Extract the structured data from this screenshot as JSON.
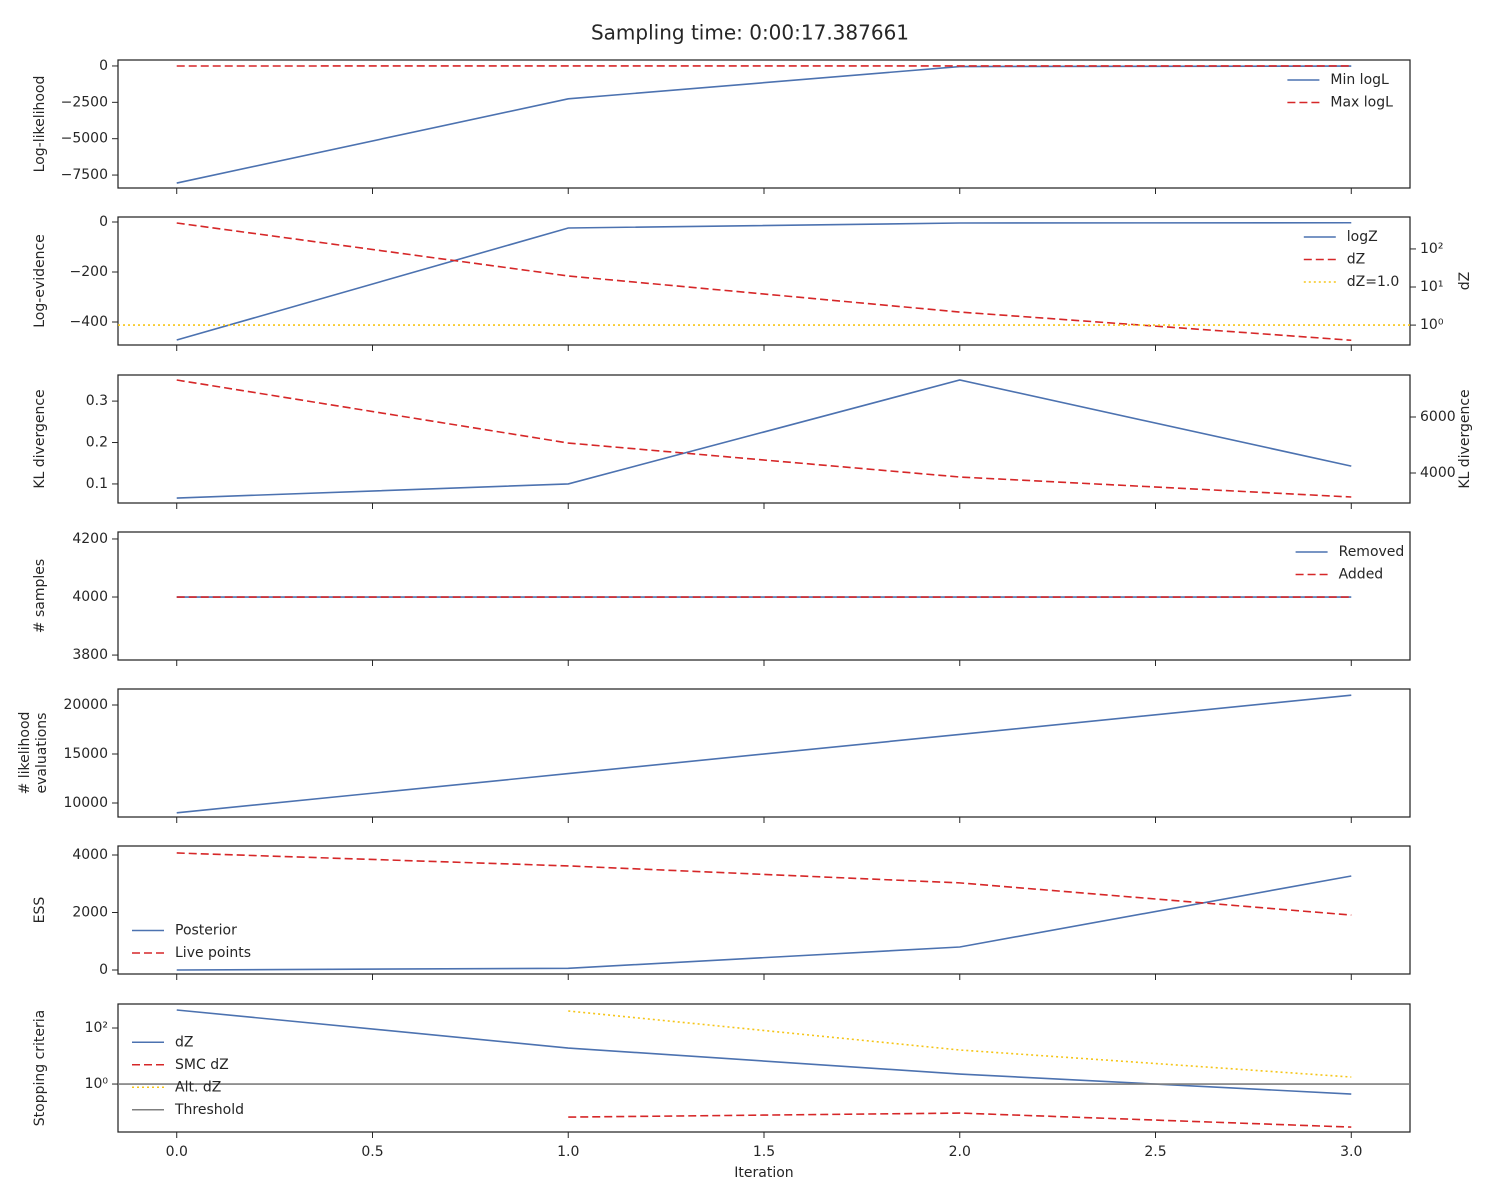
{
  "title": "Sampling time: 0:00:17.387661",
  "chart_data": [
    {
      "type": "line",
      "ylabel": "Log-likelihood",
      "x": [
        0,
        1,
        2,
        3
      ],
      "xlim": [
        -0.15,
        3.15
      ],
      "xticks": [
        0,
        0.5,
        1,
        1.5,
        2,
        2.5,
        3
      ],
      "ylim": [
        -8390,
        410
      ],
      "yticks": [
        0,
        {
          "value": -2500,
          "label": "−2500"
        },
        {
          "value": -5000,
          "label": "−5000"
        },
        {
          "value": -7500,
          "label": "−7500"
        }
      ],
      "legend": "upper right",
      "series": [
        {
          "name": "Min logL",
          "color": "#4c72b0",
          "dash": "solid",
          "values": [
            -8050,
            -2260,
            -40,
            -5
          ]
        },
        {
          "name": "Max logL",
          "color": "#d62728",
          "dash": "dashed",
          "values": [
            -2,
            -1,
            -0.5,
            -0.1
          ]
        }
      ]
    },
    {
      "type": "line",
      "ylabel": "Log-evidence",
      "x": [
        0,
        1,
        2,
        3
      ],
      "xlim": [
        -0.15,
        3.15
      ],
      "xticks": [
        0,
        0.5,
        1,
        1.5,
        2,
        2.5,
        3
      ],
      "ylim": [
        -492,
        20
      ],
      "yticks": [
        0,
        {
          "value": -200,
          "label": "−200"
        },
        {
          "value": -400,
          "label": "−400"
        }
      ],
      "y2label": "dZ",
      "y2scale": "log",
      "y2lim": [
        0.3,
        690
      ],
      "y2ticks": [
        {
          "value": 1,
          "label": "10⁰"
        },
        {
          "value": 10,
          "label": "10¹"
        },
        {
          "value": 100,
          "label": "10²"
        }
      ],
      "legend": "upper right",
      "series": [
        {
          "name": "logZ",
          "color": "#4c72b0",
          "dash": "solid",
          "values": [
            -472,
            -24,
            -4,
            -3
          ]
        },
        {
          "name": "dZ",
          "color": "#d62728",
          "dash": "dashed",
          "axis": "y2",
          "values": [
            480,
            19.5,
            2.2,
            0.4
          ]
        },
        {
          "name": "dZ=1.0",
          "color": "#f5c518",
          "dash": "dotted",
          "axis": "y2",
          "hline": 1.0
        }
      ]
    },
    {
      "type": "line",
      "ylabel": "KL divergence",
      "x": [
        0,
        1,
        2,
        3
      ],
      "xlim": [
        -0.15,
        3.15
      ],
      "xticks": [
        0,
        0.5,
        1,
        1.5,
        2,
        2.5,
        3
      ],
      "ylim": [
        0.054,
        0.363
      ],
      "yticks": [
        0.1,
        0.2,
        0.3
      ],
      "y2label": "KL divergence",
      "y2lim": [
        2929,
        7500
      ],
      "y2ticks": [
        4000,
        6000
      ],
      "series": [
        {
          "color": "#4c72b0",
          "dash": "solid",
          "values": [
            0.066,
            0.1,
            0.351,
            0.143
          ]
        },
        {
          "color": "#d62728",
          "dash": "dashed",
          "axis": "y2",
          "values": [
            7321,
            5071,
            3857,
            3143
          ]
        }
      ]
    },
    {
      "type": "line",
      "ylabel": "# samples",
      "x": [
        0,
        1,
        2,
        3
      ],
      "xlim": [
        -0.15,
        3.15
      ],
      "xticks": [
        0,
        0.5,
        1,
        1.5,
        2,
        2.5,
        3
      ],
      "ylim": [
        3783,
        4224
      ],
      "yticks": [
        3800,
        4000,
        4200
      ],
      "legend": "upper right",
      "series": [
        {
          "name": "Removed",
          "color": "#4c72b0",
          "dash": "solid",
          "values": [
            4000,
            4000,
            4000,
            4000
          ]
        },
        {
          "name": "Added",
          "color": "#d62728",
          "dash": "dashed",
          "values": [
            4000,
            4000,
            4000,
            4000
          ]
        }
      ]
    },
    {
      "type": "line",
      "ylabel": [
        "# likelihood",
        "evaluations"
      ],
      "x": [
        0,
        1,
        2,
        3
      ],
      "xlim": [
        -0.15,
        3.15
      ],
      "xticks": [
        0,
        0.5,
        1,
        1.5,
        2,
        2.5,
        3
      ],
      "ylim": [
        8571,
        21633
      ],
      "yticks": [
        10000,
        15000,
        20000
      ],
      "series": [
        {
          "color": "#4c72b0",
          "dash": "solid",
          "values": [
            9000,
            13000,
            17000,
            21000
          ]
        }
      ]
    },
    {
      "type": "line",
      "ylabel": "ESS",
      "x": [
        0,
        1,
        2,
        3
      ],
      "xlim": [
        -0.15,
        3.15
      ],
      "xticks": [
        0,
        0.5,
        1,
        1.5,
        2,
        2.5,
        3
      ],
      "ylim": [
        -139,
        4313
      ],
      "yticks": [
        0,
        2000,
        4000
      ],
      "legend": "lower left",
      "series": [
        {
          "name": "Posterior",
          "color": "#4c72b0",
          "dash": "solid",
          "values": [
            0,
            60,
            800,
            3270
          ]
        },
        {
          "name": "Live points",
          "color": "#d62728",
          "dash": "dashed",
          "values": [
            4070,
            3620,
            3030,
            1910
          ]
        }
      ]
    },
    {
      "type": "line",
      "ylabel": "Stopping criteria",
      "xlabel": "Iteration",
      "x": [
        0,
        1,
        2,
        3
      ],
      "xlim": [
        -0.15,
        3.15
      ],
      "xticks": [
        {
          "value": 0,
          "label": "0.0"
        },
        0.5,
        {
          "value": 1,
          "label": "1.0"
        },
        1.5,
        {
          "value": 2,
          "label": "2.0"
        },
        2.5,
        {
          "value": 3,
          "label": "3.0"
        }
      ],
      "yscale": "log",
      "ylim": [
        0.0194,
        720
      ],
      "yticks": [
        {
          "value": 1,
          "label": "10⁰"
        },
        {
          "value": 100,
          "label": "10²"
        }
      ],
      "legend": "center left",
      "series": [
        {
          "name": "dZ",
          "color": "#4c72b0",
          "dash": "solid",
          "values": [
            440,
            19.3,
            2.27,
            0.44
          ]
        },
        {
          "name": "SMC dZ",
          "color": "#d62728",
          "dash": "dashed",
          "values": [
            null,
            0.066,
            0.092,
            0.029
          ]
        },
        {
          "name": "Alt. dZ",
          "color": "#f5c518",
          "dash": "dotted",
          "values": [
            null,
            405,
            16.4,
            1.78
          ]
        },
        {
          "name": "Threshold",
          "color": "#7f7f7f",
          "dash": "solid",
          "hline": 1.0
        }
      ]
    }
  ]
}
